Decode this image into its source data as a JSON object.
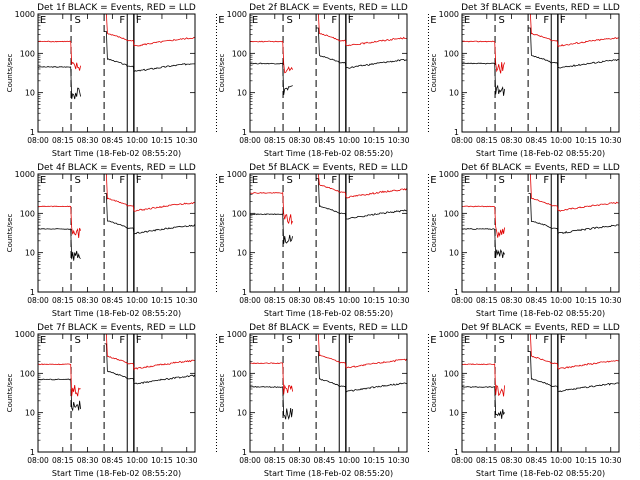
{
  "figure": {
    "ylabel": "Counts/sec",
    "xlabel": "Start Time (18-Feb-02 08:55:20)"
  },
  "colors": {
    "events": "#000000",
    "lld": "#e00000",
    "axes": "#000000"
  },
  "chart_data": [
    {
      "type": "line",
      "title": "Det 1f BLACK = Events, RED = LLD",
      "yscale": "log",
      "ylim": [
        1,
        1000
      ],
      "xlim": [
        "08:00",
        "10:35"
      ],
      "xticks": [
        "08:00",
        "08:15",
        "08:30",
        "08:45",
        "10:00",
        "10:15",
        "10:30"
      ],
      "yticks": [
        "1",
        "10",
        "100",
        "1000"
      ],
      "ylabel": "Counts/sec",
      "xlabel": "Start Time (18-Feb-02 08:55:20)",
      "markers": [
        "E",
        "S",
        "F",
        "F",
        "E"
      ],
      "series": [
        {
          "name": "Events",
          "color": "#000000",
          "base": 45
        },
        {
          "name": "LLD",
          "color": "#e00000",
          "base": 200
        }
      ]
    },
    {
      "type": "line",
      "title": "Det 2f BLACK = Events, RED = LLD",
      "yscale": "log",
      "ylim": [
        1,
        1000
      ],
      "xlim": [
        "08:00",
        "10:35"
      ],
      "xticks": [
        "08:00",
        "08:15",
        "08:30",
        "08:45",
        "10:00",
        "10:15",
        "10:30"
      ],
      "yticks": [
        "1",
        "10",
        "100",
        "1000"
      ],
      "ylabel": "Counts/sec",
      "xlabel": "Start Time (18-Feb-02 08:55:20)",
      "markers": [
        "E",
        "S",
        "F",
        "F",
        "E"
      ],
      "series": [
        {
          "name": "Events",
          "color": "#000000",
          "base": 55
        },
        {
          "name": "LLD",
          "color": "#e00000",
          "base": 200
        }
      ]
    },
    {
      "type": "line",
      "title": "Det 3f BLACK = Events, RED = LLD",
      "yscale": "log",
      "ylim": [
        1,
        1000
      ],
      "xlim": [
        "08:00",
        "10:35"
      ],
      "xticks": [
        "08:00",
        "08:15",
        "08:30",
        "08:45",
        "10:00",
        "10:15",
        "10:30"
      ],
      "yticks": [
        "1",
        "10",
        "100",
        "1000"
      ],
      "ylabel": "Counts/sec",
      "xlabel": "Start Time (18-Feb-02 08:55:20)",
      "markers": [
        "E",
        "S",
        "F",
        "F",
        "E"
      ],
      "series": [
        {
          "name": "Events",
          "color": "#000000",
          "base": 55
        },
        {
          "name": "LLD",
          "color": "#e00000",
          "base": 200
        }
      ]
    },
    {
      "type": "line",
      "title": "Det 4f BLACK = Events, RED = LLD",
      "yscale": "log",
      "ylim": [
        1,
        1000
      ],
      "xlim": [
        "08:00",
        "10:35"
      ],
      "xticks": [
        "08:00",
        "08:15",
        "08:30",
        "08:45",
        "10:00",
        "10:15",
        "10:30"
      ],
      "yticks": [
        "1",
        "10",
        "100",
        "1000"
      ],
      "ylabel": "Counts/sec",
      "xlabel": "Start Time (18-Feb-02 08:55:20)",
      "markers": [
        "E",
        "S",
        "F",
        "F",
        "E"
      ],
      "series": [
        {
          "name": "Events",
          "color": "#000000",
          "base": 40
        },
        {
          "name": "LLD",
          "color": "#e00000",
          "base": 150
        }
      ]
    },
    {
      "type": "line",
      "title": "Det 5f BLACK = Events, RED = LLD",
      "yscale": "log",
      "ylim": [
        1,
        1000
      ],
      "xlim": [
        "08:00",
        "10:35"
      ],
      "xticks": [
        "08:00",
        "08:15",
        "08:30",
        "08:45",
        "10:00",
        "10:15",
        "10:30"
      ],
      "yticks": [
        "1",
        "10",
        "100",
        "1000"
      ],
      "ylabel": "Counts/sec",
      "xlabel": "Start Time (18-Feb-02 08:55:20)",
      "markers": [
        "E",
        "S",
        "F",
        "F",
        "E"
      ],
      "series": [
        {
          "name": "Events",
          "color": "#000000",
          "base": 95
        },
        {
          "name": "LLD",
          "color": "#e00000",
          "base": 330
        }
      ]
    },
    {
      "type": "line",
      "title": "Det 6f BLACK = Events, RED = LLD",
      "yscale": "log",
      "ylim": [
        1,
        1000
      ],
      "xlim": [
        "08:00",
        "10:35"
      ],
      "xticks": [
        "08:00",
        "08:15",
        "08:30",
        "08:45",
        "10:00",
        "10:15",
        "10:30"
      ],
      "yticks": [
        "1",
        "10",
        "100",
        "1000"
      ],
      "ylabel": "Counts/sec",
      "xlabel": "Start Time (18-Feb-02 08:55:20)",
      "markers": [
        "E",
        "S",
        "F",
        "F",
        "E"
      ],
      "series": [
        {
          "name": "Events",
          "color": "#000000",
          "base": 40
        },
        {
          "name": "LLD",
          "color": "#e00000",
          "base": 150
        }
      ]
    },
    {
      "type": "line",
      "title": "Det 7f BLACK = Events, RED = LLD",
      "yscale": "log",
      "ylim": [
        1,
        1000
      ],
      "xlim": [
        "08:00",
        "10:35"
      ],
      "xticks": [
        "08:00",
        "08:15",
        "08:30",
        "08:45",
        "10:00",
        "10:15",
        "10:30"
      ],
      "yticks": [
        "1",
        "10",
        "100",
        "1000"
      ],
      "ylabel": "Counts/sec",
      "xlabel": "Start Time (18-Feb-02 08:55:20)",
      "markers": [
        "E",
        "S",
        "F",
        "F",
        "E"
      ],
      "series": [
        {
          "name": "Events",
          "color": "#000000",
          "base": 70
        },
        {
          "name": "LLD",
          "color": "#e00000",
          "base": 170
        }
      ]
    },
    {
      "type": "line",
      "title": "Det 8f BLACK = Events, RED = LLD",
      "yscale": "log",
      "ylim": [
        1,
        1000
      ],
      "xlim": [
        "08:00",
        "10:35"
      ],
      "xticks": [
        "08:00",
        "08:15",
        "08:30",
        "08:45",
        "10:00",
        "10:15",
        "10:30"
      ],
      "yticks": [
        "1",
        "10",
        "100",
        "1000"
      ],
      "ylabel": "Counts/sec",
      "xlabel": "Start Time (18-Feb-02 08:55:20)",
      "markers": [
        "E",
        "S",
        "F",
        "F",
        "E"
      ],
      "series": [
        {
          "name": "Events",
          "color": "#000000",
          "base": 45
        },
        {
          "name": "LLD",
          "color": "#e00000",
          "base": 180
        }
      ]
    },
    {
      "type": "line",
      "title": "Det 9f BLACK = Events, RED = LLD",
      "yscale": "log",
      "ylim": [
        1,
        1000
      ],
      "xlim": [
        "08:00",
        "10:35"
      ],
      "xticks": [
        "08:00",
        "08:15",
        "08:30",
        "08:45",
        "10:00",
        "10:15",
        "10:30"
      ],
      "yticks": [
        "1",
        "10",
        "100",
        "1000"
      ],
      "ylabel": "Counts/sec",
      "xlabel": "Start Time (18-Feb-02 08:55:20)",
      "markers": [
        "E",
        "S",
        "F",
        "F",
        "E"
      ],
      "series": [
        {
          "name": "Events",
          "color": "#000000",
          "base": 45
        },
        {
          "name": "LLD",
          "color": "#e00000",
          "base": 170
        }
      ]
    }
  ]
}
